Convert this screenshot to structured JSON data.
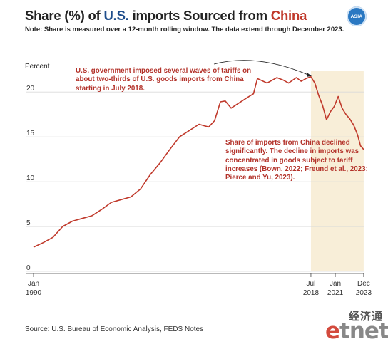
{
  "header": {
    "title_parts": [
      "Share (%) of ",
      "U.S.",
      " imports Sourced from ",
      "China"
    ],
    "note": "Note: Share is measured over a 12-month rolling window. The data extend through December 2023.",
    "logo_text": "ASIA"
  },
  "annotations": {
    "tariffs": "U.S. government imposed several waves of tariffs on about two-thirds of U.S. goods imports from China starting in July 2018.",
    "decline": "Share of imports from China declined significantly. The decline in imports was concentrated in goods subject to tariff increases (Bown, 2022; Freund et al., 2023; Pierce and Yu, 2023)."
  },
  "footer": {
    "source": "Source: U.S. Bureau of Economic Analysis, FEDS Notes",
    "watermark_cn": "经济通",
    "watermark": "etnet"
  },
  "colors": {
    "line": "#c0392b",
    "annotation": "#b3322a",
    "shade": "#f8eed8",
    "us_blue": "#1f4e8c",
    "china_red": "#c0392b"
  },
  "chart_data": {
    "type": "line",
    "title": "Share (%) of U.S. imports Sourced from China",
    "ylabel": "Percent",
    "ylim": [
      0,
      22
    ],
    "yticks": [
      0,
      5,
      10,
      15,
      20
    ],
    "xlim": [
      1990.0,
      2024.0
    ],
    "xticks": [
      {
        "x": 1990.0,
        "line1": "Jan",
        "line2": "1990"
      },
      {
        "x": 2018.5,
        "line1": "Jul",
        "line2": "2018"
      },
      {
        "x": 2021.0,
        "line1": "Jan",
        "line2": "2021"
      },
      {
        "x": 2023.92,
        "line1": "Dec",
        "line2": "2023"
      }
    ],
    "shaded_range": [
      2018.5,
      2023.92
    ],
    "grid": "horizontal",
    "series": [
      {
        "x": [
          1990.0,
          1991.0,
          1992.0,
          1993.0,
          1994.0,
          1995.0,
          1996.0,
          1997.0,
          1998.0,
          1999.0,
          2000.0,
          2001.0,
          2002.0,
          2003.0,
          2004.0,
          2005.0,
          2006.0,
          2007.0,
          2008.0,
          2008.6,
          2009.2,
          2009.7,
          2010.3,
          2011.0,
          2012.0,
          2012.6,
          2013.0,
          2014.0,
          2015.0,
          2015.7,
          2016.2,
          2017.0,
          2017.5,
          2018.0,
          2018.5,
          2018.9,
          2019.3,
          2019.7,
          2020.1,
          2020.5,
          2020.9,
          2021.3,
          2021.7,
          2022.1,
          2022.5,
          2022.9,
          2023.3,
          2023.6,
          2023.92
        ],
        "y": [
          2.7,
          3.2,
          3.8,
          5.0,
          5.6,
          5.9,
          6.2,
          6.9,
          7.7,
          8.0,
          8.3,
          9.2,
          10.8,
          12.1,
          13.6,
          15.0,
          15.7,
          16.4,
          16.1,
          16.8,
          18.9,
          19.0,
          18.2,
          18.7,
          19.4,
          19.8,
          21.5,
          21.0,
          21.6,
          21.3,
          21.0,
          21.6,
          21.2,
          21.5,
          21.7,
          21.0,
          19.6,
          18.5,
          16.9,
          17.8,
          18.4,
          19.5,
          18.2,
          17.5,
          17.0,
          16.3,
          15.2,
          14.0,
          13.6
        ]
      }
    ]
  }
}
